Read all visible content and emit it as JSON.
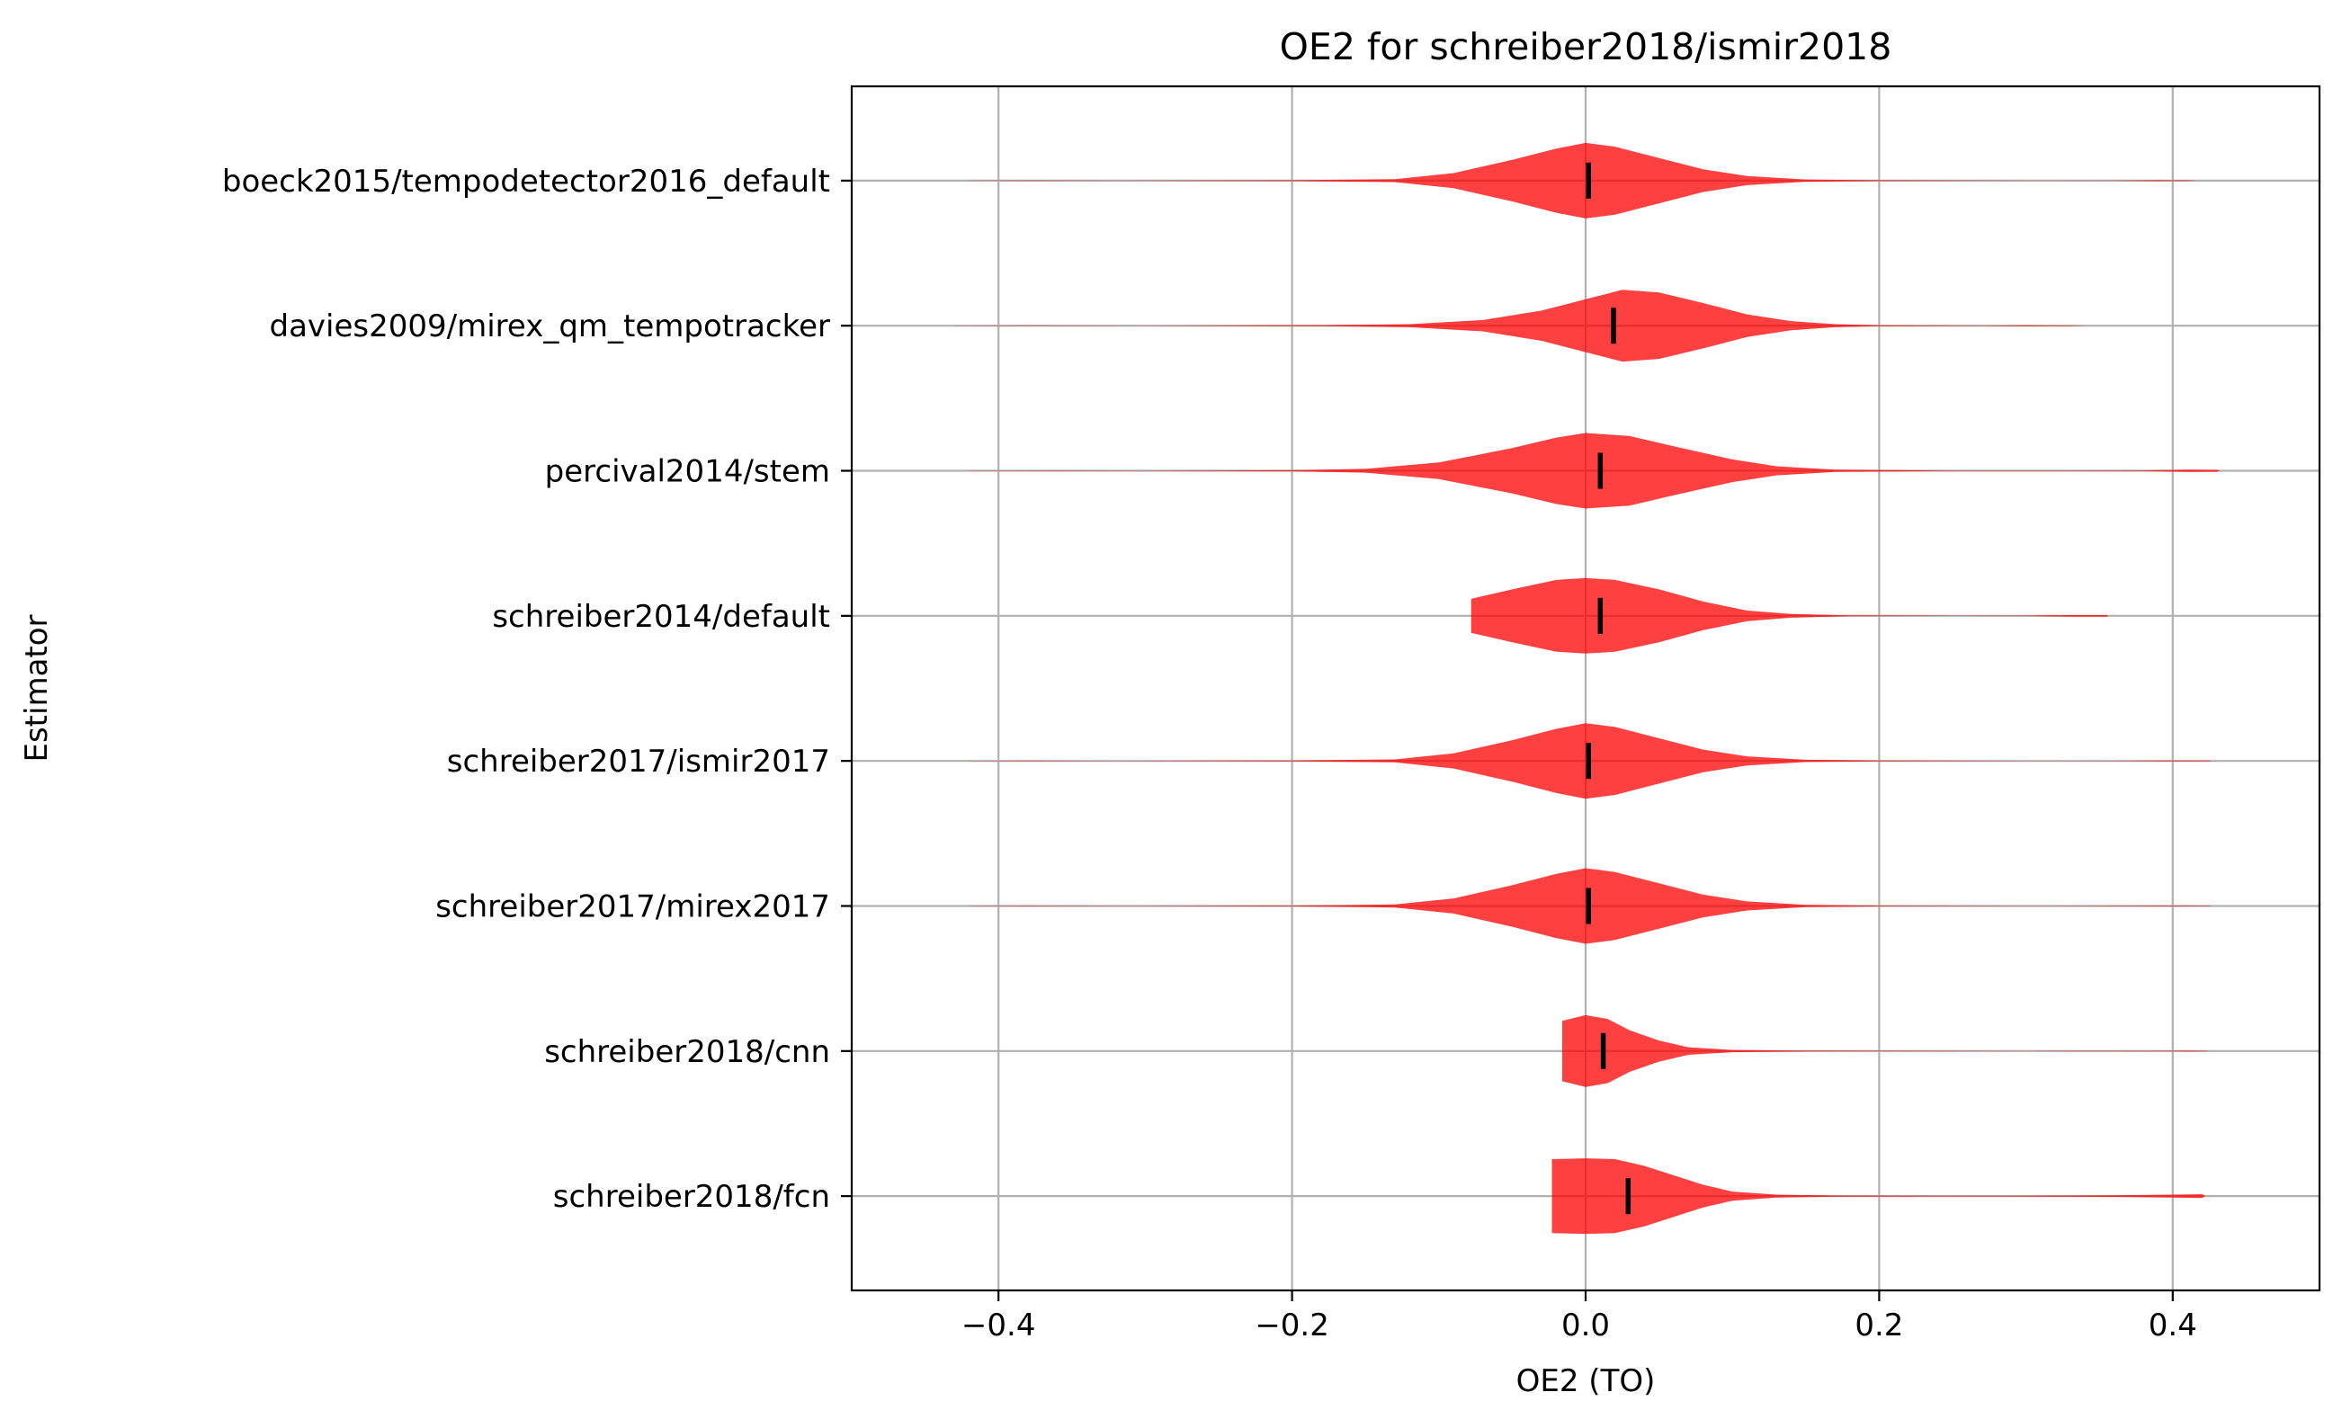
{
  "chart_data": {
    "type": "violin",
    "title": "OE2 for schreiber2018/ismir2018",
    "xlabel": "OE2 (TO)",
    "ylabel": "Estimator",
    "xlim": [
      -0.5,
      0.5
    ],
    "xticks": [
      -0.4,
      -0.2,
      0.0,
      0.2,
      0.4
    ],
    "xtick_labels": [
      "−0.4",
      "−0.2",
      "0.0",
      "0.2",
      "0.4"
    ],
    "grid": true,
    "color": "#ff0000",
    "median_color": "#000000",
    "series": [
      {
        "label": "boeck2015/tempodetector2016_default",
        "median": 0.002,
        "profile": [
          [
            -0.42,
            0.002
          ],
          [
            -0.38,
            0.006
          ],
          [
            -0.32,
            0.002
          ],
          [
            -0.2,
            0.01
          ],
          [
            -0.13,
            0.04
          ],
          [
            -0.09,
            0.2
          ],
          [
            -0.05,
            0.55
          ],
          [
            -0.02,
            0.85
          ],
          [
            0.0,
            1.0
          ],
          [
            0.02,
            0.9
          ],
          [
            0.05,
            0.6
          ],
          [
            0.08,
            0.3
          ],
          [
            0.11,
            0.12
          ],
          [
            0.15,
            0.03
          ],
          [
            0.2,
            0.01
          ],
          [
            0.3,
            0.002
          ],
          [
            0.36,
            0.004
          ],
          [
            0.39,
            0.012
          ],
          [
            0.41,
            0.008
          ],
          [
            0.415,
            0.002
          ]
        ]
      },
      {
        "label": "davies2009/mirex_qm_tempotracker",
        "median": 0.019,
        "profile": [
          [
            -0.43,
            0.002
          ],
          [
            -0.38,
            0.006
          ],
          [
            -0.3,
            0.002
          ],
          [
            -0.18,
            0.015
          ],
          [
            -0.12,
            0.04
          ],
          [
            -0.07,
            0.15
          ],
          [
            -0.03,
            0.4
          ],
          [
            0.0,
            0.7
          ],
          [
            0.025,
            0.95
          ],
          [
            0.05,
            0.88
          ],
          [
            0.08,
            0.6
          ],
          [
            0.11,
            0.3
          ],
          [
            0.14,
            0.12
          ],
          [
            0.17,
            0.04
          ],
          [
            0.2,
            0.012
          ],
          [
            0.27,
            0.004
          ],
          [
            0.3,
            0.012
          ],
          [
            0.33,
            0.008
          ],
          [
            0.34,
            0.002
          ]
        ]
      },
      {
        "label": "percival2014/stem",
        "median": 0.01,
        "profile": [
          [
            -0.42,
            0.002
          ],
          [
            -0.36,
            0.006
          ],
          [
            -0.3,
            0.002
          ],
          [
            -0.2,
            0.015
          ],
          [
            -0.15,
            0.05
          ],
          [
            -0.1,
            0.22
          ],
          [
            -0.05,
            0.6
          ],
          [
            -0.02,
            0.88
          ],
          [
            0.0,
            1.0
          ],
          [
            0.03,
            0.92
          ],
          [
            0.06,
            0.65
          ],
          [
            0.1,
            0.3
          ],
          [
            0.13,
            0.12
          ],
          [
            0.17,
            0.03
          ],
          [
            0.25,
            0.006
          ],
          [
            0.33,
            0.004
          ],
          [
            0.38,
            0.01
          ],
          [
            0.41,
            0.03
          ],
          [
            0.43,
            0.025
          ],
          [
            0.432,
            0.003
          ]
        ]
      },
      {
        "label": "schreiber2014/default",
        "median": 0.01,
        "profile": [
          [
            -0.078,
            0.45
          ],
          [
            -0.05,
            0.7
          ],
          [
            -0.02,
            0.95
          ],
          [
            0.0,
            1.0
          ],
          [
            0.02,
            0.95
          ],
          [
            0.05,
            0.7
          ],
          [
            0.08,
            0.38
          ],
          [
            0.11,
            0.14
          ],
          [
            0.14,
            0.05
          ],
          [
            0.18,
            0.012
          ],
          [
            0.25,
            0.004
          ],
          [
            0.3,
            0.006
          ],
          [
            0.33,
            0.02
          ],
          [
            0.355,
            0.02
          ],
          [
            0.356,
            0.003
          ]
        ]
      },
      {
        "label": "schreiber2017/ismir2017",
        "median": 0.002,
        "profile": [
          [
            -0.42,
            0.002
          ],
          [
            -0.38,
            0.006
          ],
          [
            -0.32,
            0.002
          ],
          [
            -0.2,
            0.01
          ],
          [
            -0.13,
            0.04
          ],
          [
            -0.09,
            0.2
          ],
          [
            -0.05,
            0.55
          ],
          [
            -0.02,
            0.85
          ],
          [
            0.0,
            1.0
          ],
          [
            0.02,
            0.9
          ],
          [
            0.05,
            0.6
          ],
          [
            0.08,
            0.3
          ],
          [
            0.11,
            0.12
          ],
          [
            0.15,
            0.03
          ],
          [
            0.2,
            0.01
          ],
          [
            0.3,
            0.002
          ],
          [
            0.36,
            0.004
          ],
          [
            0.4,
            0.01
          ],
          [
            0.425,
            0.008
          ],
          [
            0.426,
            0.002
          ]
        ]
      },
      {
        "label": "schreiber2017/mirex2017",
        "median": 0.002,
        "profile": [
          [
            -0.42,
            0.002
          ],
          [
            -0.38,
            0.006
          ],
          [
            -0.32,
            0.002
          ],
          [
            -0.2,
            0.01
          ],
          [
            -0.13,
            0.04
          ],
          [
            -0.09,
            0.2
          ],
          [
            -0.05,
            0.55
          ],
          [
            -0.02,
            0.85
          ],
          [
            0.0,
            1.0
          ],
          [
            0.02,
            0.9
          ],
          [
            0.05,
            0.6
          ],
          [
            0.08,
            0.3
          ],
          [
            0.11,
            0.12
          ],
          [
            0.15,
            0.03
          ],
          [
            0.2,
            0.01
          ],
          [
            0.3,
            0.002
          ],
          [
            0.36,
            0.004
          ],
          [
            0.4,
            0.01
          ],
          [
            0.425,
            0.008
          ],
          [
            0.426,
            0.002
          ]
        ]
      },
      {
        "label": "schreiber2018/cnn",
        "median": 0.012,
        "profile": [
          [
            -0.016,
            0.8
          ],
          [
            0.0,
            0.95
          ],
          [
            0.015,
            0.85
          ],
          [
            0.03,
            0.55
          ],
          [
            0.05,
            0.28
          ],
          [
            0.07,
            0.1
          ],
          [
            0.1,
            0.03
          ],
          [
            0.15,
            0.01
          ],
          [
            0.3,
            0.003
          ],
          [
            0.38,
            0.006
          ],
          [
            0.41,
            0.01
          ],
          [
            0.423,
            0.006
          ],
          [
            0.424,
            0.002
          ]
        ]
      },
      {
        "label": "schreiber2018/fcn",
        "median": 0.029,
        "profile": [
          [
            -0.023,
            0.98
          ],
          [
            0.0,
            1.0
          ],
          [
            0.02,
            0.98
          ],
          [
            0.04,
            0.8
          ],
          [
            0.06,
            0.55
          ],
          [
            0.08,
            0.3
          ],
          [
            0.1,
            0.12
          ],
          [
            0.13,
            0.04
          ],
          [
            0.17,
            0.015
          ],
          [
            0.25,
            0.008
          ],
          [
            0.3,
            0.01
          ],
          [
            0.36,
            0.02
          ],
          [
            0.4,
            0.04
          ],
          [
            0.42,
            0.05
          ],
          [
            0.422,
            0.005
          ]
        ]
      }
    ]
  }
}
